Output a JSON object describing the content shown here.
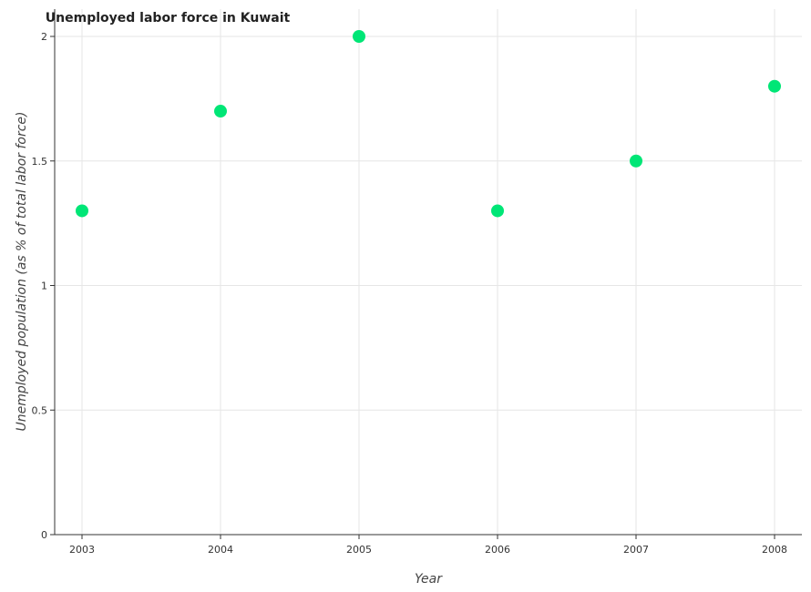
{
  "chart_data": {
    "type": "scatter",
    "title": "Unemployed labor force in Kuwait",
    "xlabel": "Year",
    "ylabel": "Unemployed population (as % of total labor force)",
    "categories": [
      "2003",
      "2004",
      "2005",
      "2006",
      "2007",
      "2008"
    ],
    "series": [
      {
        "values": [
          1.3,
          1.7,
          2.0,
          1.3,
          1.5,
          1.8
        ],
        "color": "#00e676"
      }
    ],
    "yticks": [
      0,
      0.5,
      1,
      1.5,
      2
    ],
    "ytick_labels": [
      "0",
      "0.5",
      "1",
      "1.5",
      "2"
    ],
    "ylim": [
      0,
      2.0
    ],
    "grid": true,
    "legend": "none"
  }
}
